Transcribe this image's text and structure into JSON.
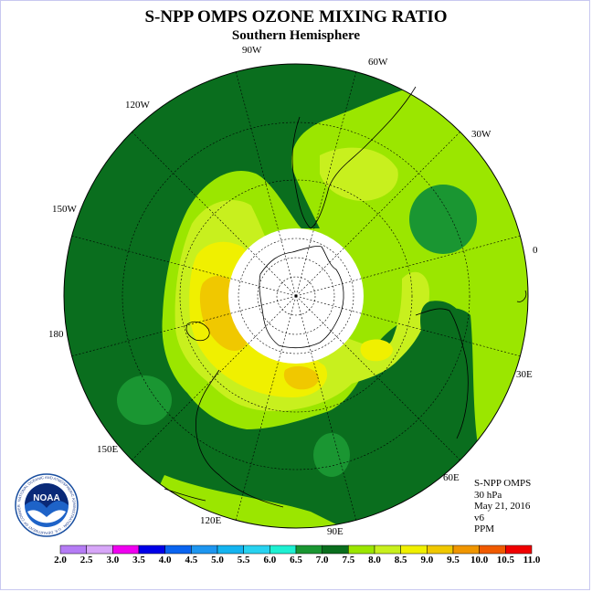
{
  "title": "S-NPP OMPS OZONE MIXING RATIO",
  "subtitle": "Southern Hemisphere",
  "longitude_labels": {
    "w90": "90W",
    "w60": "60W",
    "w30": "30W",
    "e0": "0",
    "e30": "30E",
    "e60": "60E",
    "e90": "90E",
    "e120": "120E",
    "e150": "150E",
    "d180": "180",
    "w150": "150W",
    "w120": "120W"
  },
  "info": {
    "instrument": "S-NPP OMPS",
    "level": "30 hPa",
    "date": "May 21, 2016",
    "version": "v6",
    "units": "PPM"
  },
  "logo": {
    "text": "NOAA",
    "ring_text": "NATIONAL OCEANIC AND ATMOSPHERIC ADMINISTRATION · U.S. DEPARTMENT OF COMMERCE"
  },
  "colorbar": {
    "ticks": [
      "2.0",
      "2.5",
      "3.0",
      "3.5",
      "4.0",
      "4.5",
      "5.0",
      "5.5",
      "6.0",
      "6.5",
      "7.0",
      "7.5",
      "8.0",
      "8.5",
      "9.0",
      "9.5",
      "10.0",
      "10.5",
      "11.0"
    ],
    "colors": [
      "#b57cf5",
      "#d7a6f8",
      "#f000f0",
      "#0000e8",
      "#0a64f0",
      "#1e96f0",
      "#14b4f0",
      "#28d2f0",
      "#1ef0d2",
      "#1a9632",
      "#0a6e1e",
      "#9be600",
      "#c8f01e",
      "#f0f000",
      "#f0c800",
      "#f09600",
      "#f05a00",
      "#f00000",
      "#80503c"
    ]
  },
  "map_colors": {
    "level_7_0": "#0a6e1e",
    "level_6_5": "#1a9632",
    "level_7_5": "#9be600",
    "level_8_0": "#c8f01e",
    "level_8_5": "#f0f000",
    "level_9_0": "#f0c800",
    "polar_night_mask": "#ffffff"
  }
}
